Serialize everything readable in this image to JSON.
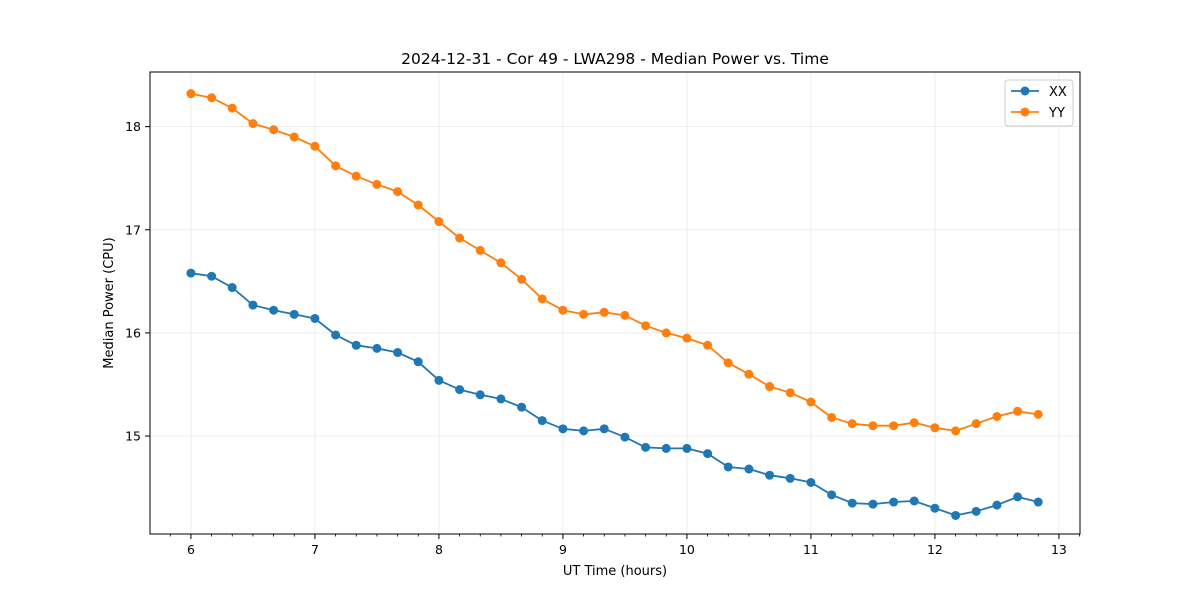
{
  "chart_data": {
    "type": "line",
    "title": "2024-12-31 - Cor 49 - LWA298 - Median Power vs. Time",
    "xlabel": "UT Time (hours)",
    "ylabel": "Median Power (CPU)",
    "xlim": [
      5.67,
      13.17
    ],
    "ylim": [
      14.05,
      18.53
    ],
    "xticks": [
      6,
      7,
      8,
      9,
      10,
      11,
      12,
      13
    ],
    "xtick_labels": [
      "6",
      "7",
      "8",
      "9",
      "10",
      "11",
      "12",
      "13"
    ],
    "yticks": [
      15,
      16,
      17,
      18
    ],
    "ytick_labels": [
      "15",
      "16",
      "17",
      "18"
    ],
    "grid": true,
    "legend_position": "top-right",
    "x": [
      6.0,
      6.167,
      6.333,
      6.5,
      6.667,
      6.833,
      7.0,
      7.167,
      7.333,
      7.5,
      7.667,
      7.833,
      8.0,
      8.167,
      8.333,
      8.5,
      8.667,
      8.833,
      9.0,
      9.167,
      9.333,
      9.5,
      9.667,
      9.833,
      10.0,
      10.167,
      10.333,
      10.5,
      10.667,
      10.833,
      11.0,
      11.167,
      11.333,
      11.5,
      11.667,
      11.833,
      12.0,
      12.167,
      12.333,
      12.5,
      12.667,
      12.833
    ],
    "series": [
      {
        "name": "XX",
        "color": "#1f77b4",
        "values": [
          16.58,
          16.55,
          16.44,
          16.27,
          16.22,
          16.18,
          16.14,
          15.98,
          15.88,
          15.85,
          15.81,
          15.72,
          15.54,
          15.45,
          15.4,
          15.36,
          15.28,
          15.15,
          15.07,
          15.05,
          15.07,
          14.99,
          14.89,
          14.88,
          14.88,
          14.83,
          14.7,
          14.68,
          14.62,
          14.59,
          14.55,
          14.43,
          14.35,
          14.34,
          14.36,
          14.37,
          14.3,
          14.23,
          14.27,
          14.33,
          14.41,
          14.36
        ]
      },
      {
        "name": "YY",
        "color": "#ff7f0e",
        "values": [
          18.32,
          18.28,
          18.18,
          18.03,
          17.97,
          17.9,
          17.81,
          17.62,
          17.52,
          17.44,
          17.37,
          17.24,
          17.08,
          16.92,
          16.8,
          16.68,
          16.52,
          16.33,
          16.22,
          16.18,
          16.2,
          16.17,
          16.07,
          16.0,
          15.95,
          15.88,
          15.71,
          15.6,
          15.48,
          15.42,
          15.33,
          15.18,
          15.12,
          15.1,
          15.1,
          15.13,
          15.08,
          15.05,
          15.12,
          15.19,
          15.24,
          15.21
        ]
      }
    ]
  }
}
